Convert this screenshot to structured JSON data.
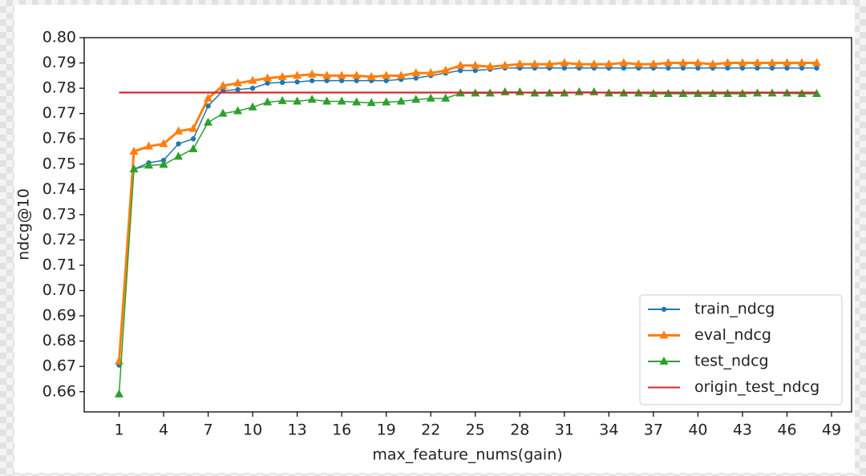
{
  "chart_data": {
    "type": "line",
    "x": [
      1,
      2,
      3,
      4,
      5,
      6,
      7,
      8,
      9,
      10,
      11,
      12,
      13,
      14,
      15,
      16,
      17,
      18,
      19,
      20,
      21,
      22,
      23,
      24,
      25,
      26,
      27,
      28,
      29,
      30,
      31,
      32,
      33,
      34,
      35,
      36,
      37,
      38,
      39,
      40,
      41,
      42,
      43,
      44,
      45,
      46,
      47,
      48
    ],
    "x_label": "max_feature_nums(gain)",
    "y_label": "ndcg@10",
    "xlim": [
      -1.35,
      50.35
    ],
    "xticks": [
      1,
      4,
      7,
      10,
      13,
      16,
      19,
      22,
      25,
      28,
      31,
      34,
      37,
      40,
      43,
      46,
      49
    ],
    "ylim": [
      0.652,
      0.8
    ],
    "yticks": [
      0.66,
      0.67,
      0.68,
      0.69,
      {
        "value": 0.7,
        "label": "0.70"
      },
      0.71,
      0.72,
      0.73,
      0.74,
      0.75,
      0.76,
      0.77,
      0.78,
      0.79,
      {
        "value": 0.8,
        "label": "0.80"
      }
    ],
    "legend": "lower right",
    "series": [
      {
        "name": "train_ndcg",
        "color": "#1f77b4",
        "marker": "circle",
        "values": [
          0.6705,
          0.748,
          0.7505,
          0.7515,
          0.758,
          0.76,
          0.773,
          0.779,
          0.7795,
          0.78,
          0.782,
          0.7823,
          0.7825,
          0.783,
          0.783,
          0.783,
          0.783,
          0.783,
          0.783,
          0.7835,
          0.784,
          0.785,
          0.786,
          0.787,
          0.787,
          0.7875,
          0.788,
          0.788,
          0.788,
          0.788,
          0.788,
          0.788,
          0.788,
          0.788,
          0.788,
          0.788,
          0.788,
          0.788,
          0.788,
          0.788,
          0.788,
          0.788,
          0.788,
          0.788,
          0.788,
          0.788,
          0.788,
          0.788
        ]
      },
      {
        "name": "eval_ndcg",
        "color": "#ff7f0e",
        "marker": "triangle",
        "values": [
          0.672,
          0.755,
          0.757,
          0.758,
          0.763,
          0.764,
          0.776,
          0.781,
          0.782,
          0.783,
          0.784,
          0.7845,
          0.785,
          0.7855,
          0.785,
          0.785,
          0.785,
          0.7845,
          0.785,
          0.785,
          0.786,
          0.786,
          0.787,
          0.789,
          0.789,
          0.7885,
          0.789,
          0.7895,
          0.7895,
          0.7895,
          0.79,
          0.7895,
          0.7895,
          0.7895,
          0.79,
          0.7895,
          0.7895,
          0.79,
          0.79,
          0.79,
          0.7895,
          0.79,
          0.79,
          0.79,
          0.79,
          0.79,
          0.79,
          0.79
        ]
      },
      {
        "name": "test_ndcg",
        "color": "#2ca02c",
        "marker": "triangle",
        "values": [
          0.659,
          0.748,
          0.7495,
          0.7498,
          0.753,
          0.756,
          0.7665,
          0.77,
          0.771,
          0.7725,
          0.7745,
          0.775,
          0.7748,
          0.7755,
          0.7748,
          0.7748,
          0.7745,
          0.7742,
          0.7745,
          0.7748,
          0.7755,
          0.776,
          0.776,
          0.778,
          0.778,
          0.778,
          0.7785,
          0.7785,
          0.778,
          0.778,
          0.778,
          0.7785,
          0.7785,
          0.778,
          0.778,
          0.778,
          0.7778,
          0.7778,
          0.7778,
          0.7778,
          0.7778,
          0.7778,
          0.7778,
          0.778,
          0.778,
          0.778,
          0.7778,
          0.7778
        ]
      },
      {
        "name": "origin_test_ndcg",
        "color": "#d62728",
        "marker": "none",
        "x": [
          1,
          48
        ],
        "values": [
          0.7783,
          0.7783
        ]
      }
    ]
  }
}
